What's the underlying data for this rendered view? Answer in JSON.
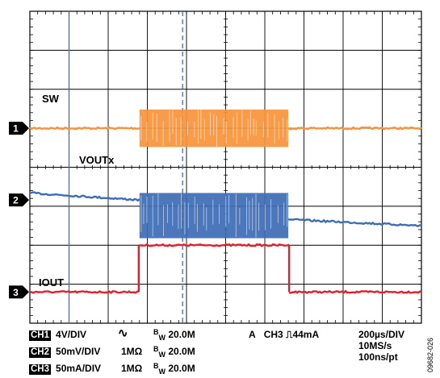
{
  "chart_data": {
    "type": "line",
    "grid": {
      "x_divisions": 10,
      "y_divisions": 8,
      "on": true
    },
    "time_per_div_us": 200,
    "cursor_positions_div": [
      1.0,
      3.9
    ],
    "series": [
      {
        "name": "SW",
        "channel": "1",
        "color": "#f7943a",
        "levels_div": {
          "baseline": 3.0,
          "switch_high": 2.52,
          "switch_low": 3.48
        },
        "segments_div": [
          {
            "kind": "flat",
            "x": [
              0,
              2.8
            ],
            "y": 3.0
          },
          {
            "kind": "switching",
            "x": [
              2.8,
              6.6
            ],
            "y_range": [
              2.52,
              3.48
            ]
          },
          {
            "kind": "flat",
            "x": [
              6.6,
              10
            ],
            "y": 3.0
          }
        ]
      },
      {
        "name": "VOUTx",
        "channel": "2",
        "color": "#3d6db5",
        "segments_div": [
          {
            "kind": "ramp",
            "x": [
              0,
              2.8
            ],
            "y": [
              4.66,
              4.84
            ]
          },
          {
            "kind": "switching",
            "x": [
              2.8,
              6.6
            ],
            "y_range": [
              4.66,
              5.82
            ]
          },
          {
            "kind": "ramp",
            "x": [
              6.6,
              10
            ],
            "y": [
              5.34,
              5.5
            ]
          }
        ]
      },
      {
        "name": "IOUT",
        "channel": "3",
        "color": "#e0202e",
        "segments_div": [
          {
            "kind": "flat",
            "x": [
              0,
              2.78
            ],
            "y": 7.2
          },
          {
            "kind": "flat",
            "x": [
              2.78,
              6.62
            ],
            "y": 6.0
          },
          {
            "kind": "flat",
            "x": [
              6.62,
              10
            ],
            "y": 7.2
          }
        ]
      }
    ],
    "markers": [
      {
        "label": "1",
        "div": 3.0
      },
      {
        "label": "2",
        "div": 4.84
      },
      {
        "label": "3",
        "div": 7.2
      }
    ]
  },
  "labels": {
    "sw": "SW",
    "voutx": "VOUTx",
    "iout": "IOUT"
  },
  "footer": {
    "ch1": {
      "tag": "CH1",
      "scale": "4V/DIV",
      "coupling_symbol": "∿",
      "bw_prefix": "B",
      "bw_sub": "W",
      "bw_value": "20.0M"
    },
    "ch2": {
      "tag": "CH2",
      "scale": "50mV/DIV",
      "impedance": "1MΩ",
      "bw_prefix": "B",
      "bw_sub": "W",
      "bw_value": "20.0M"
    },
    "ch3": {
      "tag": "CH3",
      "scale": "50mA/DIV",
      "impedance": "1MΩ",
      "bw_prefix": "B",
      "bw_sub": "W",
      "bw_value": "20.0M"
    },
    "trigger": {
      "mode": "A",
      "source": "CH3",
      "symbol": "⎍",
      "level": "44mA"
    },
    "timebase": {
      "time_div": "200µs/DIV",
      "sample_rate": "10MS/s",
      "resolution": "100ns/pt"
    }
  },
  "figure_id": "09682-026",
  "colors": {
    "sw": "#f7943a",
    "vout": "#3d6db5",
    "iout": "#e0202e",
    "cursor": "#3d6db5",
    "grid": "#000000"
  }
}
